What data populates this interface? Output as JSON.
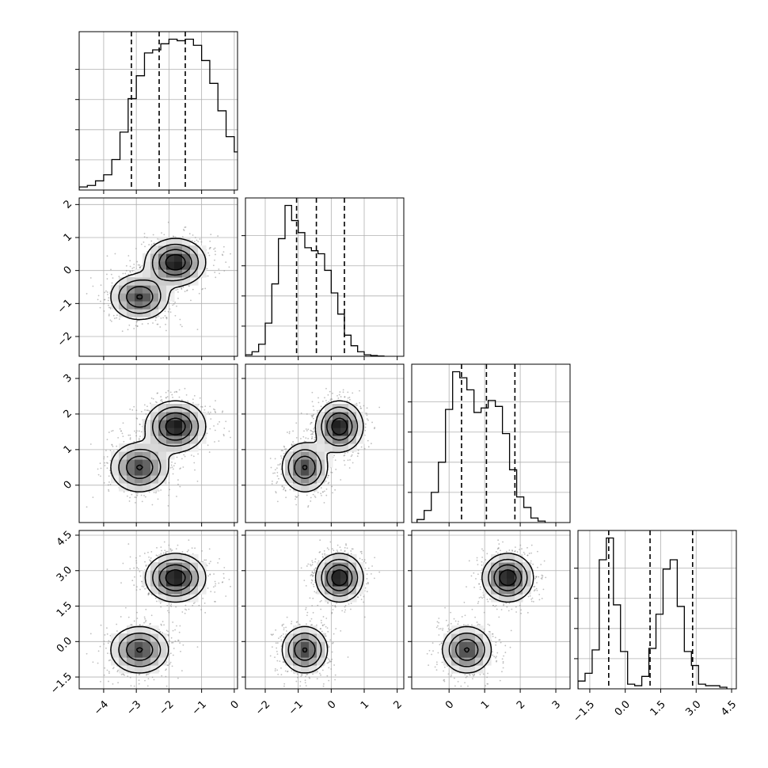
{
  "chart_data": {
    "type": "corner",
    "title": "",
    "grid": true,
    "params": [
      {
        "ticks": [
          -4,
          -3,
          -2,
          -1,
          0
        ],
        "tick_labels": [
          "−4",
          "−3",
          "−2",
          "−1",
          "0"
        ],
        "range": [
          -4.75,
          0.1
        ],
        "quantiles": [
          -3.15,
          -2.3,
          -1.5
        ],
        "hist": {
          "start": -4.75,
          "step": 0.25,
          "counts": [
            2,
            3,
            6,
            10,
            20,
            38,
            60,
            75,
            90,
            92,
            96,
            99,
            98,
            99,
            95,
            85,
            70,
            52,
            35,
            25,
            12,
            6,
            3,
            2,
            1
          ]
        }
      },
      {
        "ticks": [
          -2,
          -1,
          0,
          1,
          2
        ],
        "tick_labels": [
          "−2",
          "−1",
          "0",
          "1",
          "2"
        ],
        "range": [
          -2.6,
          2.2
        ],
        "quantiles": [
          -1.05,
          -0.45,
          0.4
        ],
        "hist": {
          "start": -2.6,
          "step": 0.2,
          "counts": [
            1,
            3,
            8,
            22,
            48,
            78,
            100,
            90,
            82,
            72,
            70,
            68,
            57,
            42,
            28,
            14,
            7,
            3,
            1,
            0.5,
            0.2
          ]
        }
      },
      {
        "ticks": [
          0,
          1,
          2,
          3
        ],
        "tick_labels": [
          "0",
          "1",
          "2",
          "3"
        ],
        "range": [
          -1.05,
          3.4
        ],
        "quantiles": [
          0.35,
          1.05,
          1.85
        ],
        "hist": {
          "start": -0.9,
          "step": 0.2,
          "counts": [
            2,
            8,
            20,
            40,
            75,
            100,
            96,
            88,
            73,
            76,
            81,
            77,
            59,
            35,
            17,
            10,
            3,
            1
          ]
        }
      },
      {
        "ticks": [
          -1.5,
          0,
          1.5,
          3,
          4.5
        ],
        "tick_labels": [
          "−1.5",
          "0.0",
          "1.5",
          "3.0",
          "4.5"
        ],
        "range": [
          -2.0,
          4.7
        ],
        "quantiles": [
          -0.7,
          1.05,
          2.85
        ],
        "hist": {
          "start": -2.0,
          "step": 0.3,
          "counts": [
            5,
            10,
            25,
            83,
            97,
            54,
            24,
            3,
            2,
            8,
            26,
            48,
            77,
            83,
            53,
            24,
            15,
            3,
            2,
            2,
            1
          ]
        }
      }
    ],
    "modes": [
      {
        "center": [
          -2.9,
          -0.8,
          0.5,
          -0.35
        ],
        "weight": 0.45
      },
      {
        "center": [
          -1.8,
          0.25,
          1.65,
          2.7
        ],
        "weight": 0.55
      }
    ],
    "kde_sigma": [
      0.45,
      0.35,
      0.35,
      0.5
    ],
    "contour_levels_fraction": [
      0.12,
      0.3,
      0.55,
      0.8
    ]
  }
}
